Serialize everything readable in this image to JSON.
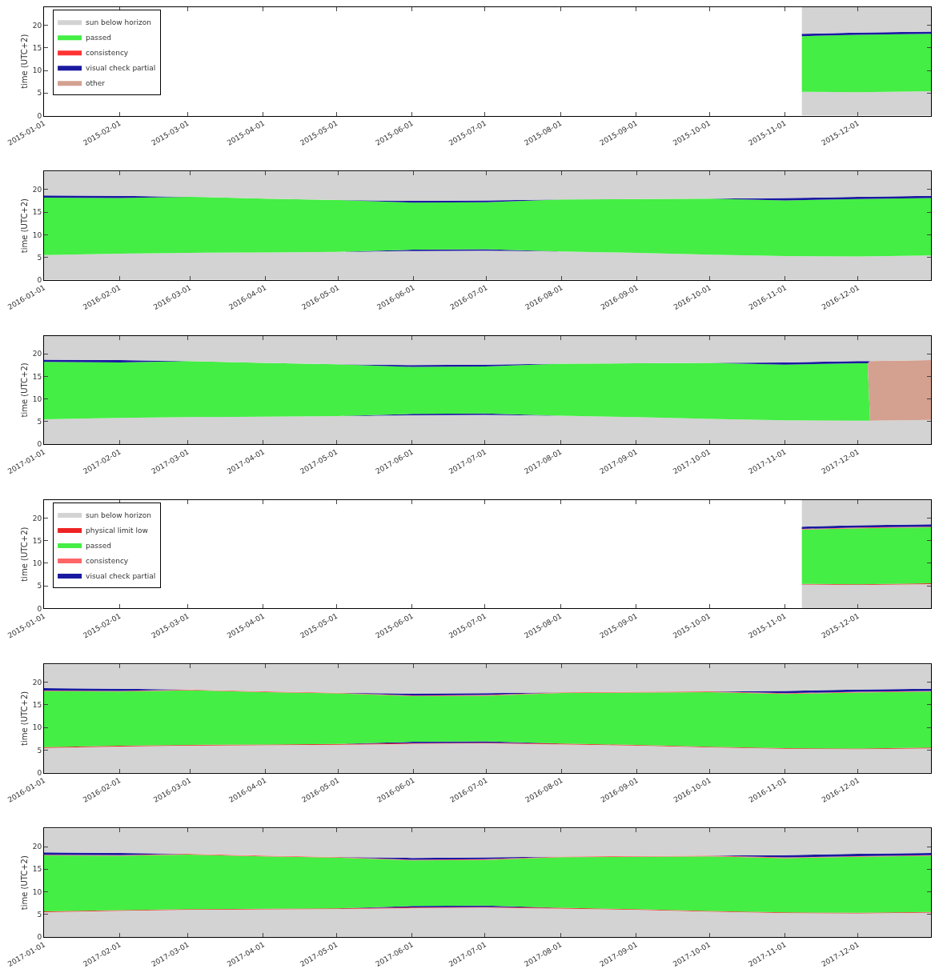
{
  "chart_data": [
    {
      "type": "area",
      "stacked": true,
      "ylabel": "time (UTC+2)",
      "legend": "top left",
      "xlim": [
        "2015-01-01",
        "2015-12-31"
      ],
      "ylim": [
        0,
        24
      ],
      "yticks": [
        0,
        5,
        10,
        15,
        20
      ],
      "xticks": [
        "2015-01-01",
        "2015-02-01",
        "2015-03-01",
        "2015-04-01",
        "2015-05-01",
        "2015-06-01",
        "2015-07-01",
        "2015-08-01",
        "2015-09-01",
        "2015-10-01",
        "2015-11-01",
        "2015-12-01"
      ],
      "x": [
        "2015-11-08",
        "2015-12-01",
        "2015-12-31"
      ],
      "series": [
        {
          "name": "sun below horizon",
          "color": "#d3d3d3",
          "values": [
            5.3,
            5.2,
            5.4
          ]
        },
        {
          "name": "passed",
          "color": "#44ee44",
          "values": [
            12.3,
            12.7,
            12.7
          ]
        },
        {
          "name": "consistency",
          "color": "#ff3333",
          "values": [
            null,
            null,
            null
          ]
        },
        {
          "name": "visual check partial",
          "color": "#1a1aa0",
          "values": [
            0.5,
            0.5,
            0.5
          ]
        },
        {
          "name": "other",
          "color": "#d4a090",
          "values": [
            null,
            null,
            null
          ]
        },
        {
          "color": "#d3d3d3",
          "values": [
            5.9,
            5.6,
            5.4
          ]
        }
      ]
    },
    {
      "type": "area",
      "stacked": true,
      "ylabel": "time (UTC+2)",
      "xlim": [
        "2016-01-01",
        "2016-12-31"
      ],
      "ylim": [
        0,
        24
      ],
      "yticks": [
        0,
        5,
        10,
        15,
        20
      ],
      "xticks": [
        "2016-01-01",
        "2016-02-01",
        "2016-03-01",
        "2016-04-01",
        "2016-05-01",
        "2016-06-01",
        "2016-07-01",
        "2016-08-01",
        "2016-09-01",
        "2016-10-01",
        "2016-11-01",
        "2016-12-01"
      ],
      "x": [
        "2016-01-01",
        "2016-02-01",
        "2016-03-01",
        "2016-04-01",
        "2016-05-01",
        "2016-06-01",
        "2016-07-01",
        "2016-08-01",
        "2016-09-01",
        "2016-10-01",
        "2016-11-01",
        "2016-12-01",
        "2016-12-31"
      ],
      "series": [
        {
          "color": "#d3d3d3",
          "values": [
            5.5,
            5.8,
            6.0,
            6.1,
            6.2,
            6.4,
            6.5,
            6.3,
            6.0,
            5.6,
            5.3,
            5.2,
            5.4
          ]
        },
        {
          "color": "#1a1aa0",
          "values": [
            0,
            0,
            0,
            0,
            0,
            0.3,
            0.3,
            0,
            0,
            0,
            0,
            0,
            0
          ]
        },
        {
          "color": "#44ee44",
          "values": [
            12.7,
            12.3,
            12.4,
            11.9,
            11.5,
            10.4,
            10.4,
            11.5,
            11.9,
            12.4,
            12.3,
            12.7,
            12.7
          ]
        },
        {
          "color": "#1a1aa0",
          "values": [
            0.5,
            0.5,
            0,
            0,
            0,
            0.4,
            0.4,
            0,
            0,
            0,
            0.5,
            0.5,
            0.5
          ]
        },
        {
          "color": "#d3d3d3",
          "values": [
            5.3,
            5.4,
            5.6,
            6.0,
            6.3,
            6.5,
            6.4,
            6.2,
            6.1,
            6.0,
            5.9,
            5.6,
            5.4
          ]
        }
      ]
    },
    {
      "type": "area",
      "stacked": true,
      "ylabel": "time (UTC+2)",
      "xlim": [
        "2017-01-01",
        "2017-12-31"
      ],
      "ylim": [
        0,
        24
      ],
      "yticks": [
        0,
        5,
        10,
        15,
        20
      ],
      "xticks": [
        "2017-01-01",
        "2017-02-01",
        "2017-03-01",
        "2017-04-01",
        "2017-05-01",
        "2017-06-01",
        "2017-07-01",
        "2017-08-01",
        "2017-09-01",
        "2017-10-01",
        "2017-11-01",
        "2017-12-01"
      ],
      "x": [
        "2017-01-01",
        "2017-02-01",
        "2017-03-01",
        "2017-04-01",
        "2017-05-01",
        "2017-06-01",
        "2017-07-01",
        "2017-08-01",
        "2017-09-01",
        "2017-10-01",
        "2017-11-01",
        "2017-12-01",
        "2017-12-05",
        "2017-12-06",
        "2017-12-31"
      ],
      "series": [
        {
          "color": "#d3d3d3",
          "values": [
            5.5,
            5.8,
            6.0,
            6.1,
            6.2,
            6.4,
            6.5,
            6.3,
            6.0,
            5.6,
            5.3,
            5.2,
            5.2,
            5.2,
            5.4
          ]
        },
        {
          "color": "#1a1aa0",
          "values": [
            0,
            0,
            0,
            0,
            0,
            0.3,
            0.3,
            0,
            0,
            0,
            0,
            0,
            0,
            0,
            0
          ]
        },
        {
          "color": "#44ee44",
          "values": [
            12.7,
            12.3,
            12.4,
            11.9,
            11.5,
            10.4,
            10.4,
            11.5,
            11.9,
            12.4,
            12.3,
            12.7,
            12.7,
            0,
            0
          ]
        },
        {
          "color": "#d4a090",
          "values": [
            0,
            0,
            0,
            0,
            0,
            0,
            0,
            0,
            0,
            0,
            0,
            0,
            0,
            13.2,
            13.2
          ]
        },
        {
          "color": "#1a1aa0",
          "values": [
            0.5,
            0.5,
            0,
            0,
            0,
            0.4,
            0.4,
            0,
            0,
            0,
            0.5,
            0.5,
            0.5,
            0,
            0
          ]
        },
        {
          "color": "#d3d3d3",
          "values": [
            5.3,
            5.4,
            5.6,
            6.0,
            6.3,
            6.5,
            6.4,
            6.2,
            6.1,
            6.0,
            5.9,
            5.6,
            5.6,
            5.6,
            5.4
          ]
        }
      ]
    },
    {
      "type": "area",
      "stacked": true,
      "ylabel": "time (UTC+2)",
      "legend": "top left",
      "xlim": [
        "2015-01-01",
        "2015-12-31"
      ],
      "ylim": [
        0,
        24
      ],
      "yticks": [
        0,
        5,
        10,
        15,
        20
      ],
      "xticks": [
        "2015-01-01",
        "2015-02-01",
        "2015-03-01",
        "2015-04-01",
        "2015-05-01",
        "2015-06-01",
        "2015-07-01",
        "2015-08-01",
        "2015-09-01",
        "2015-10-01",
        "2015-11-01",
        "2015-12-01"
      ],
      "x": [
        "2015-11-08",
        "2015-12-01",
        "2015-12-31"
      ],
      "series": [
        {
          "name": "sun below horizon",
          "color": "#d3d3d3",
          "values": [
            5.3,
            5.2,
            5.4
          ]
        },
        {
          "name": "physical limit low",
          "color": "#ee2222",
          "values": [
            0.15,
            0.15,
            0.15
          ]
        },
        {
          "name": "passed",
          "color": "#44ee44",
          "values": [
            12.0,
            12.4,
            12.4
          ]
        },
        {
          "name": "consistency",
          "color": "#ff6666",
          "values": [
            0.15,
            0.15,
            0.15
          ]
        },
        {
          "name": "visual check partial",
          "color": "#1a1aa0",
          "values": [
            0.5,
            0.5,
            0.5
          ]
        },
        {
          "color": "#d3d3d3",
          "values": [
            5.9,
            5.6,
            5.4
          ]
        }
      ]
    },
    {
      "type": "area",
      "stacked": true,
      "ylabel": "time (UTC+2)",
      "xlim": [
        "2016-01-01",
        "2016-12-31"
      ],
      "ylim": [
        0,
        24
      ],
      "yticks": [
        0,
        5,
        10,
        15,
        20
      ],
      "xticks": [
        "2016-01-01",
        "2016-02-01",
        "2016-03-01",
        "2016-04-01",
        "2016-05-01",
        "2016-06-01",
        "2016-07-01",
        "2016-08-01",
        "2016-09-01",
        "2016-10-01",
        "2016-11-01",
        "2016-12-01"
      ],
      "x": [
        "2016-01-01",
        "2016-02-01",
        "2016-03-01",
        "2016-04-01",
        "2016-05-01",
        "2016-06-01",
        "2016-07-01",
        "2016-08-01",
        "2016-09-01",
        "2016-10-01",
        "2016-11-01",
        "2016-12-01",
        "2016-12-31"
      ],
      "series": [
        {
          "color": "#d3d3d3",
          "values": [
            5.5,
            5.8,
            6.0,
            6.1,
            6.2,
            6.4,
            6.5,
            6.3,
            6.0,
            5.6,
            5.3,
            5.2,
            5.4
          ]
        },
        {
          "color": "#ee2222",
          "values": [
            0.15,
            0.15,
            0.15,
            0.15,
            0.15,
            0.15,
            0.15,
            0.15,
            0.15,
            0.15,
            0.15,
            0.15,
            0.15
          ]
        },
        {
          "color": "#1a1aa0",
          "values": [
            0,
            0,
            0,
            0,
            0,
            0.3,
            0.3,
            0,
            0,
            0,
            0,
            0,
            0
          ]
        },
        {
          "color": "#44ee44",
          "values": [
            12.4,
            12.0,
            12.1,
            11.6,
            11.2,
            10.1,
            10.1,
            11.2,
            11.6,
            12.1,
            12.0,
            12.4,
            12.4
          ]
        },
        {
          "color": "#ff6666",
          "values": [
            0.15,
            0.15,
            0.15,
            0.15,
            0.15,
            0.15,
            0.15,
            0.15,
            0.15,
            0.15,
            0.15,
            0.15,
            0.15
          ]
        },
        {
          "color": "#1a1aa0",
          "values": [
            0.5,
            0.5,
            0,
            0,
            0,
            0.4,
            0.4,
            0,
            0,
            0,
            0.5,
            0.5,
            0.5
          ]
        },
        {
          "color": "#d3d3d3",
          "values": [
            5.3,
            5.4,
            5.6,
            6.0,
            6.3,
            6.5,
            6.4,
            6.2,
            6.1,
            6.0,
            5.9,
            5.6,
            5.4
          ]
        }
      ]
    },
    {
      "type": "area",
      "stacked": true,
      "ylabel": "time (UTC+2)",
      "xlim": [
        "2017-01-01",
        "2017-12-31"
      ],
      "ylim": [
        0,
        24
      ],
      "yticks": [
        0,
        5,
        10,
        15,
        20
      ],
      "xticks": [
        "2017-01-01",
        "2017-02-01",
        "2017-03-01",
        "2017-04-01",
        "2017-05-01",
        "2017-06-01",
        "2017-07-01",
        "2017-08-01",
        "2017-09-01",
        "2017-10-01",
        "2017-11-01",
        "2017-12-01"
      ],
      "x": [
        "2017-01-01",
        "2017-02-01",
        "2017-03-01",
        "2017-04-01",
        "2017-05-01",
        "2017-06-01",
        "2017-07-01",
        "2017-08-01",
        "2017-09-01",
        "2017-10-01",
        "2017-11-01",
        "2017-12-01",
        "2017-12-31"
      ],
      "series": [
        {
          "color": "#d3d3d3",
          "values": [
            5.5,
            5.8,
            6.0,
            6.1,
            6.2,
            6.4,
            6.5,
            6.3,
            6.0,
            5.6,
            5.3,
            5.2,
            5.4
          ]
        },
        {
          "color": "#ee2222",
          "values": [
            0.15,
            0.15,
            0.15,
            0.15,
            0.15,
            0.15,
            0.15,
            0.15,
            0.15,
            0.15,
            0.15,
            0.15,
            0.15
          ]
        },
        {
          "color": "#1a1aa0",
          "values": [
            0,
            0,
            0,
            0,
            0,
            0.3,
            0.3,
            0,
            0,
            0,
            0,
            0,
            0
          ]
        },
        {
          "color": "#44ee44",
          "values": [
            12.4,
            12.0,
            12.1,
            11.6,
            11.2,
            10.1,
            10.1,
            11.2,
            11.6,
            12.1,
            12.0,
            12.4,
            12.4
          ]
        },
        {
          "color": "#ff6666",
          "values": [
            0.15,
            0.15,
            0.15,
            0.15,
            0.15,
            0.15,
            0.15,
            0.15,
            0.15,
            0.15,
            0.15,
            0.15,
            0.15
          ]
        },
        {
          "color": "#1a1aa0",
          "values": [
            0.5,
            0.5,
            0,
            0,
            0,
            0.4,
            0.4,
            0,
            0,
            0,
            0.5,
            0.5,
            0.5
          ]
        },
        {
          "color": "#d3d3d3",
          "values": [
            5.3,
            5.4,
            5.6,
            6.0,
            6.3,
            6.5,
            6.4,
            6.2,
            6.1,
            6.0,
            5.9,
            5.6,
            5.4
          ]
        }
      ]
    }
  ]
}
